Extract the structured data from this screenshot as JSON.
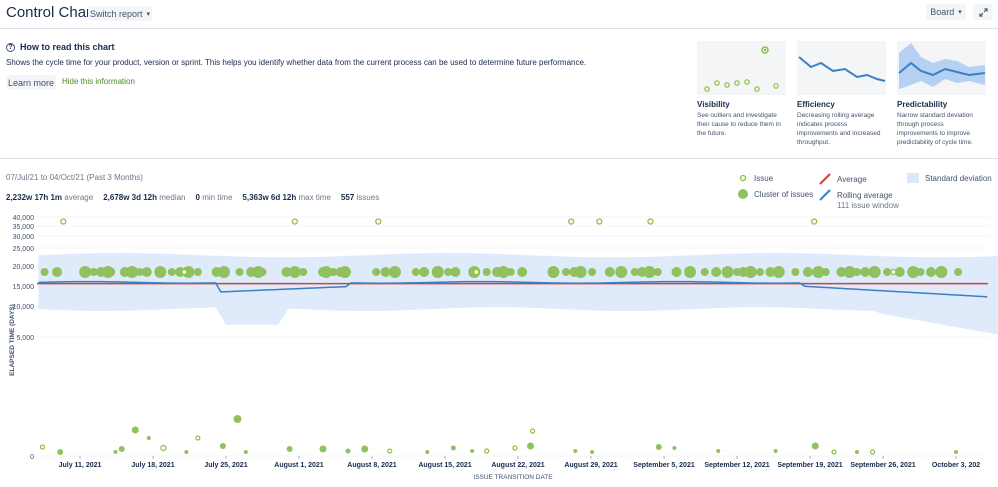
{
  "header": {
    "title": "Control Chart",
    "switch_report_label": "Switch report",
    "board_label": "Board"
  },
  "info": {
    "title": "How to read this chart",
    "description": "Shows the cycle time for your product, version or sprint. This helps you identify whether data from the current process can be used to determine future performance.",
    "learn_more_label": "Learn more",
    "hide_label": "Hide this information",
    "cards": [
      {
        "title": "Visibility",
        "desc": "See outliers and investigate their cause to reduce them in the future."
      },
      {
        "title": "Efficiency",
        "desc": "Decreasing rolling average indicates process improvements and increased throughput."
      },
      {
        "title": "Predictability",
        "desc": "Narrow standard deviation through process improvements to improve predictability of cycle time."
      }
    ]
  },
  "summary": {
    "range": "07/Jul/21 to 04/Oct/21 (Past 3 Months)",
    "average_value": "2,232w 17h 1m",
    "average_label": "average",
    "median_value": "2,678w 3d 12h",
    "median_label": "median",
    "min_value": "0",
    "min_label": "min time",
    "max_value": "5,363w 6d 12h",
    "max_label": "max time",
    "issues_value": "557",
    "issues_label": "issues"
  },
  "legend": {
    "issue": "Issue",
    "cluster": "Cluster of issues",
    "average": "Average",
    "rolling": "Rolling average",
    "rolling_sub": "111 issue window",
    "stddev": "Standard deviation"
  },
  "colors": {
    "issue": "#8fbf3f",
    "cluster": "#8fc25e",
    "average": "#d04437",
    "rolling": "#3b7fc4",
    "stddev": "#dbe8fb",
    "link": "#4a8a23"
  },
  "chart_data": {
    "type": "scatter",
    "xlabel": "ISSUE TRANSITION DATE",
    "ylabel": "ELAPSED TIME (DAYS)",
    "y_ticks": [
      "40,000",
      "35,000",
      "30,000",
      "25,000",
      "20,000",
      "15,000",
      "10,000",
      "5,000",
      "0"
    ],
    "x_ticks": [
      "July 11, 2021",
      "July 18, 2021",
      "July 25, 2021",
      "August 1, 2021",
      "August 8, 2021",
      "August 15, 2021",
      "August 22, 2021",
      "August 29, 2021",
      "September 5, 2021",
      "September 12, 2021",
      "September 19, 2021",
      "September 26, 2021",
      "October 3, 202"
    ],
    "average": 15600,
    "top_clusters_days": [
      0.6,
      1.8,
      4.5,
      5.3,
      6.0,
      6.7,
      7.0,
      8.3,
      9.0,
      9.7,
      10.4,
      11.7,
      12.8,
      13.6,
      14.4,
      15.3,
      17.1,
      17.8,
      19.3,
      20.4,
      21.1,
      21.5,
      23.8,
      24.6,
      25.4,
      27.3,
      27.6,
      28.3,
      29.0,
      29.4,
      32.4,
      33.3,
      34.2,
      36.2,
      37.0,
      38.3,
      39.3,
      40.0,
      41.8,
      43.0,
      44.0,
      44.6,
      45.3,
      46.4,
      49.4,
      50.6,
      51.4,
      52.0,
      53.1,
      54.8,
      55.9,
      57.2,
      57.9,
      58.6,
      59.4,
      61.2,
      62.5,
      63.9,
      65.0,
      66.1,
      67.0,
      67.6,
      68.3,
      69.2,
      70.2,
      71.0,
      72.6,
      73.8,
      74.8,
      75.5,
      77.0,
      77.8,
      78.5,
      79.3,
      80.2,
      81.4,
      82.6,
      83.9,
      84.6,
      85.6,
      86.6,
      88.2
    ],
    "top_issues_days": [
      14.0,
      42.0,
      82.0
    ],
    "outliers": [
      {
        "day": 2.4,
        "value": 37500
      },
      {
        "day": 24.6,
        "value": 37500
      },
      {
        "day": 32.6,
        "value": 37500
      },
      {
        "day": 51.1,
        "value": 37500
      },
      {
        "day": 53.8,
        "value": 37500
      },
      {
        "day": 58.7,
        "value": 37500
      },
      {
        "day": 74.4,
        "value": 37500
      }
    ]
  }
}
